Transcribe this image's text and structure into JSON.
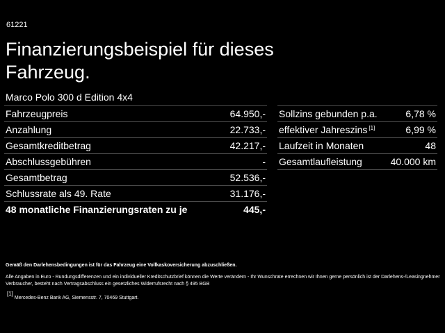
{
  "header": {
    "code": "61221",
    "title": "Finanzierungsbeispiel für dieses Fahrzeug.",
    "subtitle": "Marco Polo 300 d Edition 4x4"
  },
  "left_table": {
    "rows": [
      [
        "Fahrzeugpreis",
        "64.950,-"
      ],
      [
        "Anzahlung",
        "22.733,-"
      ],
      [
        "Gesamtkreditbetrag",
        "42.217,-"
      ],
      [
        "Abschlussgebühren",
        "-"
      ],
      [
        "Gesamtbetrag",
        "52.536,-"
      ],
      [
        "Schlussrate als 49. Rate",
        "31.176,-"
      ],
      [
        "48 monatliche Finanzierungsraten zu je",
        "445,-"
      ]
    ]
  },
  "right_table": {
    "rows": [
      {
        "label": "Sollzins gebunden p.a.",
        "value": "6,78 %"
      },
      {
        "label": "effektiver Jahreszins",
        "sup": "[1]",
        "value": "6,99 %"
      },
      {
        "label": "Laufzeit in Monaten",
        "value": "48"
      },
      {
        "label": "Gesamtlaufleistung",
        "value": "40.000 km"
      }
    ]
  },
  "footnotes": {
    "insurance": "Gemäß den Darlehensbedingungen ist für das Fahrzeug eine Vollkaskoversicherung abzuschließen.",
    "disclaimer": "Alle Angaben in Euro - Rundungsdifferenzen und ein individueller Kreditschutzbrief können die Werte verändern - Ihr Wunschrate errechnen wir Ihnen gerne persönlich ist der Darlehens-/Leasingnehmer Verbraucher, besteht nach Vertragsabschluss ein gesetzliches Widerrufsrecht nach § 495 BGB",
    "marker": "[1]",
    "bank": "Mercedes-Benz Bank AG, Siemensstr. 7, 70469 Stuttgart."
  }
}
